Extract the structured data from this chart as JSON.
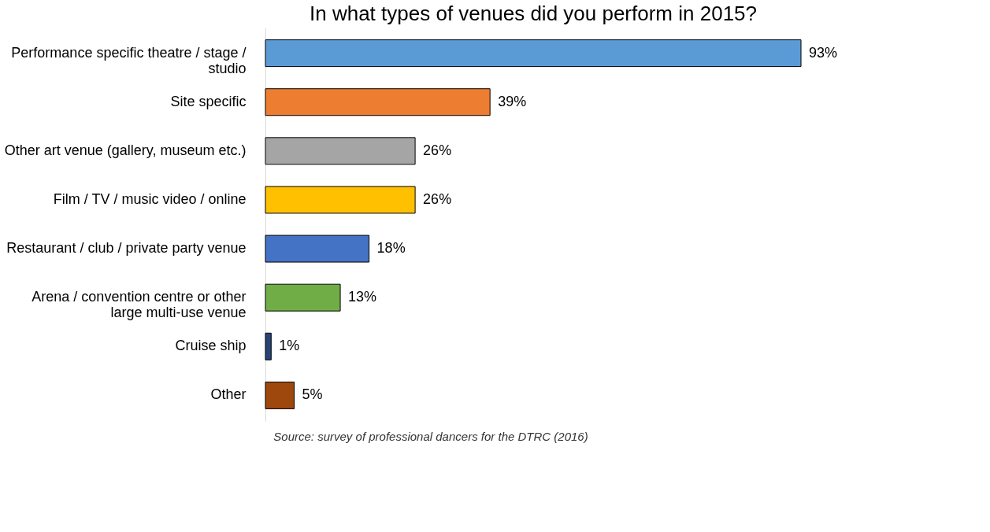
{
  "chart_data": {
    "type": "bar",
    "orientation": "horizontal",
    "title": "In what types of venues did you perform in 2015?",
    "categories": [
      "Performance specific theatre / stage / studio",
      "Site specific",
      "Other art venue (gallery, museum etc.)",
      "Film / TV / music video / online",
      "Restaurant / club / private party venue",
      "Arena / convention centre or other large multi-use venue",
      "Cruise ship",
      "Other"
    ],
    "values": [
      93,
      39,
      26,
      26,
      18,
      13,
      1,
      5
    ],
    "colors": [
      "#5b9bd5",
      "#ed7d31",
      "#a5a5a5",
      "#ffc000",
      "#4472c4",
      "#70ad47",
      "#264478",
      "#9e480e"
    ],
    "value_labels": [
      "93%",
      "39%",
      "26%",
      "26%",
      "18%",
      "13%",
      "1%",
      "5%"
    ],
    "annotations": [
      "Source: survey of professional dancers for the DTRC (2016)"
    ]
  }
}
